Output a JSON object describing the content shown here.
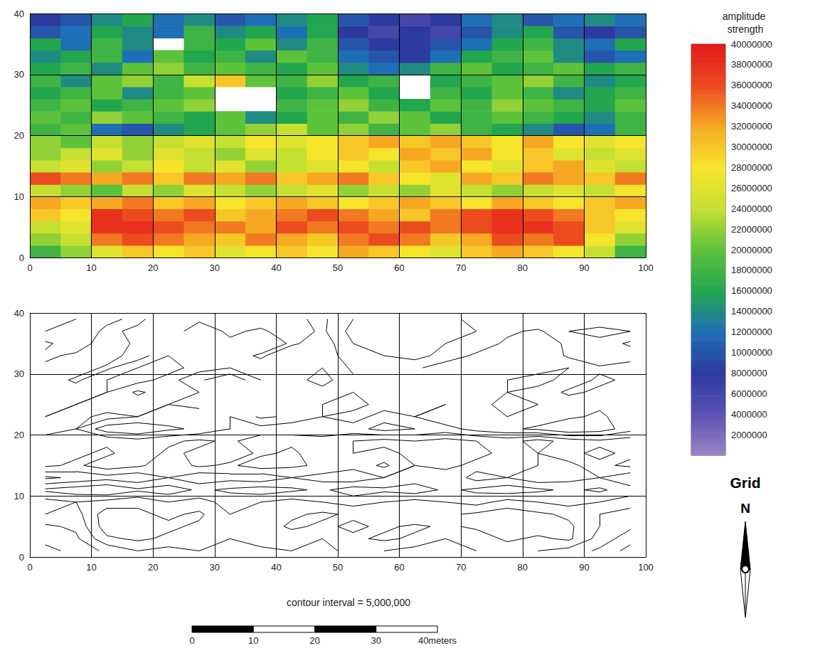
{
  "chart_data": [
    {
      "type": "heatmap",
      "x": [
        2.5,
        7.5,
        12.5,
        17.5,
        22.5,
        27.5,
        32.5,
        37.5,
        42.5,
        47.5,
        52.5,
        57.5,
        62.5,
        67.5,
        72.5,
        77.5,
        82.5,
        87.5,
        92.5,
        97.5
      ],
      "y": [
        1,
        3,
        5,
        7,
        9,
        11,
        13,
        15,
        17,
        19,
        21,
        23,
        25,
        27,
        29,
        31,
        33,
        35,
        37,
        39
      ],
      "z": [
        [
          18000000,
          22000000,
          26000000,
          30000000,
          28000000,
          30000000,
          26000000,
          28000000,
          30000000,
          28000000,
          32000000,
          30000000,
          28000000,
          26000000,
          30000000,
          32000000,
          30000000,
          28000000,
          24000000,
          18000000
        ],
        [
          22000000,
          24000000,
          34000000,
          36000000,
          34000000,
          32000000,
          30000000,
          34000000,
          32000000,
          30000000,
          34000000,
          36000000,
          34000000,
          30000000,
          32000000,
          36000000,
          34000000,
          36000000,
          28000000,
          22000000
        ],
        [
          24000000,
          26000000,
          38000000,
          38000000,
          36000000,
          34000000,
          34000000,
          32000000,
          36000000,
          34000000,
          36000000,
          34000000,
          36000000,
          34000000,
          36000000,
          38000000,
          38000000,
          36000000,
          30000000,
          26000000
        ],
        [
          30000000,
          28000000,
          38000000,
          36000000,
          34000000,
          36000000,
          30000000,
          32000000,
          34000000,
          36000000,
          34000000,
          32000000,
          30000000,
          34000000,
          36000000,
          38000000,
          36000000,
          34000000,
          30000000,
          28000000
        ],
        [
          32000000,
          30000000,
          32000000,
          34000000,
          30000000,
          32000000,
          28000000,
          30000000,
          32000000,
          30000000,
          28000000,
          30000000,
          32000000,
          30000000,
          28000000,
          32000000,
          30000000,
          28000000,
          30000000,
          32000000
        ],
        [
          24000000,
          22000000,
          20000000,
          24000000,
          22000000,
          26000000,
          24000000,
          22000000,
          24000000,
          26000000,
          22000000,
          24000000,
          22000000,
          26000000,
          24000000,
          22000000,
          24000000,
          26000000,
          24000000,
          28000000
        ],
        [
          36000000,
          34000000,
          32000000,
          34000000,
          30000000,
          34000000,
          32000000,
          34000000,
          30000000,
          32000000,
          34000000,
          30000000,
          28000000,
          26000000,
          32000000,
          30000000,
          34000000,
          32000000,
          30000000,
          34000000
        ],
        [
          24000000,
          26000000,
          22000000,
          24000000,
          28000000,
          24000000,
          26000000,
          22000000,
          24000000,
          26000000,
          28000000,
          24000000,
          30000000,
          32000000,
          28000000,
          26000000,
          30000000,
          32000000,
          26000000,
          24000000
        ],
        [
          22000000,
          24000000,
          26000000,
          22000000,
          26000000,
          24000000,
          22000000,
          26000000,
          24000000,
          28000000,
          30000000,
          28000000,
          32000000,
          30000000,
          32000000,
          28000000,
          30000000,
          26000000,
          24000000,
          26000000
        ],
        [
          22000000,
          20000000,
          24000000,
          22000000,
          24000000,
          26000000,
          24000000,
          28000000,
          26000000,
          28000000,
          30000000,
          32000000,
          30000000,
          32000000,
          30000000,
          28000000,
          32000000,
          28000000,
          26000000,
          28000000
        ],
        [
          18000000,
          20000000,
          12000000,
          10000000,
          14000000,
          16000000,
          20000000,
          22000000,
          24000000,
          20000000,
          22000000,
          18000000,
          20000000,
          22000000,
          18000000,
          16000000,
          14000000,
          10000000,
          12000000,
          18000000
        ],
        [
          20000000,
          18000000,
          22000000,
          20000000,
          18000000,
          16000000,
          20000000,
          14000000,
          16000000,
          20000000,
          18000000,
          22000000,
          20000000,
          16000000,
          18000000,
          20000000,
          18000000,
          16000000,
          14000000,
          18000000
        ],
        [
          18000000,
          20000000,
          16000000,
          18000000,
          20000000,
          22000000,
          null,
          null,
          18000000,
          20000000,
          22000000,
          18000000,
          16000000,
          20000000,
          18000000,
          22000000,
          20000000,
          18000000,
          16000000,
          20000000
        ],
        [
          16000000,
          18000000,
          20000000,
          14000000,
          18000000,
          20000000,
          null,
          null,
          16000000,
          18000000,
          20000000,
          16000000,
          null,
          18000000,
          16000000,
          20000000,
          18000000,
          14000000,
          16000000,
          18000000
        ],
        [
          18000000,
          14000000,
          20000000,
          22000000,
          18000000,
          24000000,
          30000000,
          20000000,
          18000000,
          22000000,
          16000000,
          18000000,
          null,
          16000000,
          18000000,
          20000000,
          22000000,
          18000000,
          14000000,
          16000000
        ],
        [
          16000000,
          18000000,
          14000000,
          20000000,
          22000000,
          18000000,
          20000000,
          18000000,
          16000000,
          20000000,
          14000000,
          12000000,
          14000000,
          18000000,
          20000000,
          16000000,
          18000000,
          20000000,
          16000000,
          18000000
        ],
        [
          14000000,
          16000000,
          18000000,
          12000000,
          20000000,
          16000000,
          18000000,
          14000000,
          20000000,
          18000000,
          12000000,
          10000000,
          8000000,
          12000000,
          16000000,
          18000000,
          20000000,
          14000000,
          10000000,
          12000000
        ],
        [
          16000000,
          12000000,
          18000000,
          14000000,
          null,
          18000000,
          16000000,
          20000000,
          14000000,
          18000000,
          10000000,
          8000000,
          8000000,
          10000000,
          12000000,
          16000000,
          18000000,
          14000000,
          12000000,
          16000000
        ],
        [
          10000000,
          12000000,
          16000000,
          14000000,
          12000000,
          18000000,
          14000000,
          16000000,
          12000000,
          16000000,
          8000000,
          6000000,
          8000000,
          6000000,
          10000000,
          14000000,
          16000000,
          10000000,
          8000000,
          10000000
        ],
        [
          8000000,
          10000000,
          14000000,
          16000000,
          12000000,
          14000000,
          10000000,
          12000000,
          14000000,
          16000000,
          10000000,
          8000000,
          6000000,
          8000000,
          12000000,
          14000000,
          10000000,
          12000000,
          14000000,
          12000000
        ]
      ],
      "xlim": [
        0,
        100
      ],
      "ylim": [
        0,
        40
      ],
      "xticks": [
        0,
        10,
        20,
        30,
        40,
        50,
        60,
        70,
        80,
        90,
        100
      ],
      "yticks": [
        0,
        10,
        20,
        30,
        40
      ],
      "grid": true,
      "colorbar": {
        "title": "amplitude strength",
        "range": [
          0,
          40000000
        ],
        "ticks": [
          2000000,
          4000000,
          6000000,
          8000000,
          10000000,
          12000000,
          14000000,
          16000000,
          18000000,
          20000000,
          22000000,
          24000000,
          26000000,
          28000000,
          30000000,
          32000000,
          34000000,
          36000000,
          38000000,
          40000000
        ]
      }
    },
    {
      "type": "contour",
      "contour_interval": 5000000,
      "caption": "contour interval = 5,000,000",
      "xlim": [
        0,
        100
      ],
      "ylim": [
        0,
        40
      ],
      "xticks": [
        0,
        10,
        20,
        30,
        40,
        50,
        60,
        70,
        80,
        90,
        100
      ],
      "yticks": [
        0,
        10,
        20,
        30,
        40
      ],
      "grid": true
    }
  ],
  "scale_bar": {
    "ticks": [
      0,
      10,
      20,
      30,
      {
        "value": 40,
        "label": "40meters"
      }
    ]
  },
  "north_arrow": {
    "title": "Grid",
    "label": "N"
  }
}
